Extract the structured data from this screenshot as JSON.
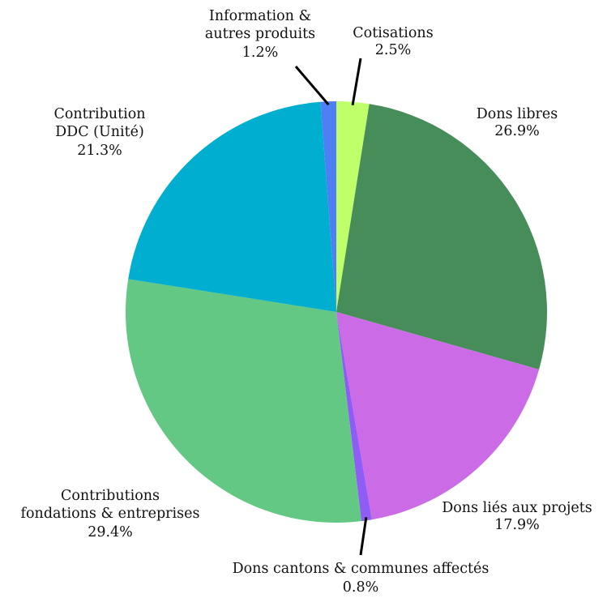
{
  "chart_data": {
    "type": "pie",
    "title": "",
    "slices": [
      {
        "label": "Cotisations",
        "value": 2.5,
        "value_label": "2.5%",
        "color": "#bfff6a"
      },
      {
        "label": "Dons libres",
        "value": 26.9,
        "value_label": "26.9%",
        "color": "#468d5a"
      },
      {
        "label": "Dons liés aux projets",
        "value": 17.9,
        "value_label": "17.9%",
        "color": "#cb6be6"
      },
      {
        "label": "Dons cantons & communes affectés",
        "value": 0.8,
        "value_label": "0.8%",
        "color": "#8f5cf5"
      },
      {
        "label": "Contributions fondations & entreprises",
        "value": 29.4,
        "value_label": "29.4%",
        "color": "#62c883"
      },
      {
        "label": "Contribution DDC (Unité)",
        "value": 21.3,
        "value_label": "21.3%",
        "color": "#00aed0"
      },
      {
        "label": "Information & autres produits",
        "value": 1.2,
        "value_label": "1.2%",
        "color": "#4f7ff5"
      }
    ]
  }
}
